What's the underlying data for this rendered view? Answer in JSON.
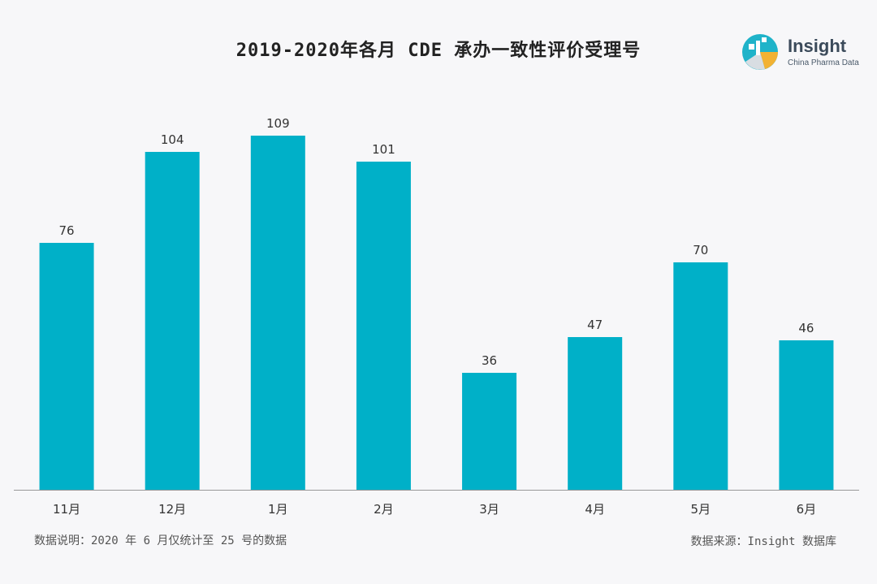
{
  "title": "2019-2020年各月 CDE 承办一致性评价受理号",
  "logo": {
    "name": "Insight",
    "subtitle": "China Pharma Data"
  },
  "note": "数据说明：2020 年 6 月仅统计至 25 号的数据",
  "source": "数据来源：Insight 数据库",
  "colors": {
    "bar": "#00b0c8",
    "axis": "#999999",
    "text": "#333333"
  },
  "chart_data": {
    "type": "bar",
    "title": "2019-2020年各月 CDE 承办一致性评价受理号",
    "categories": [
      "11月",
      "12月",
      "1月",
      "2月",
      "3月",
      "4月",
      "5月",
      "6月"
    ],
    "values": [
      76,
      104,
      109,
      101,
      36,
      47,
      70,
      46
    ],
    "xlabel": "",
    "ylabel": "",
    "ylim": [
      0,
      115
    ],
    "grid": false,
    "data_labels": true
  }
}
